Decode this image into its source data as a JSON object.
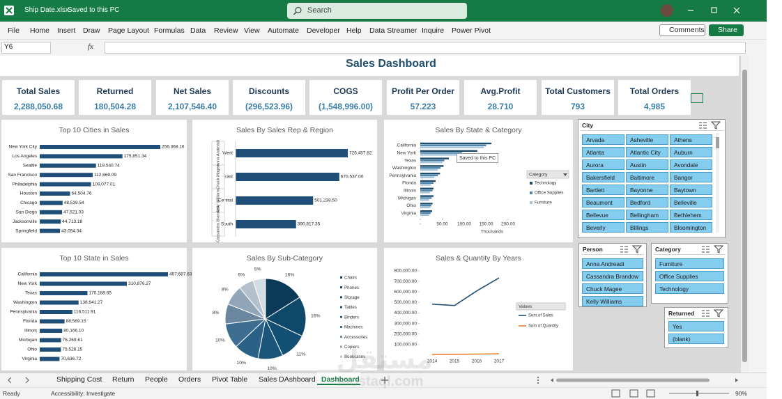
{
  "titlebar": {
    "file": "Ship Date.xlsx",
    "status": "Saved to this PC",
    "search": "Search"
  },
  "menu": [
    "File",
    "Home",
    "Insert",
    "Draw",
    "Page Layout",
    "Formulas",
    "Data",
    "Review",
    "View",
    "Automate",
    "Developer",
    "Help",
    "Data Streamer",
    "Inquire",
    "Power Pivot"
  ],
  "comments": "Comments",
  "share": "Share",
  "name_box": "Y6",
  "fx": "fx",
  "dashboard_title": "Sales Dashboard",
  "kpis": [
    {
      "label": "Total Sales",
      "value": "2,288,050.68"
    },
    {
      "label": "Returned",
      "value": "180,504.28"
    },
    {
      "label": "Net Sales",
      "value": "2,107,546.40"
    },
    {
      "label": "Discounts",
      "value": "(296,523.96)"
    },
    {
      "label": "COGS",
      "value": "(1,548,996.00)"
    },
    {
      "label": "Profit Per Order",
      "value": "57.223"
    },
    {
      "label": "Avg.Profit",
      "value": "28.710"
    },
    {
      "label": "Total Customers",
      "value": "793"
    },
    {
      "label": "Total Orders",
      "value": "4,985"
    }
  ],
  "chart_data": [
    {
      "type": "bar",
      "title": "Top 10 Cities in Sales",
      "color": "#1f4e79",
      "categories": [
        "New York City",
        "Los Angeles",
        "Seattle",
        "San Francisco",
        "Philadelphia",
        "Houston",
        "Chicago",
        "San Diego",
        "Jacksonville",
        "Springfield"
      ],
      "values": [
        256368.16,
        175851.34,
        119540.74,
        112669.09,
        109077.01,
        64504.76,
        48539.54,
        47521.03,
        44713.18,
        43054.34
      ],
      "value_labels": [
        "256,368.16",
        "175,851.34",
        "119,540.74",
        "112,669.09",
        "109,077.01",
        "64,504.76",
        "48,539.54",
        "47,521.03",
        "44,713.18",
        "43,054.34"
      ]
    },
    {
      "type": "bar",
      "title": "Sales By Sales Rep & Region",
      "color": "#1f4e79",
      "groups": [
        "Anna Andreadi",
        "Chuck Magee",
        "Kelly Williams",
        "Cassandra Brandow"
      ],
      "categories": [
        "West",
        "East",
        "Central",
        "South"
      ],
      "values": [
        725457.82,
        670537.0,
        501238.5,
        390817.35
      ],
      "value_labels": [
        "725,457.82",
        "670,537.00",
        "501,238.50",
        "390,817.35"
      ]
    },
    {
      "type": "bar",
      "title": "Sales By State & Category",
      "xlabel": "Thousands",
      "legend_title": "Category",
      "categories": [
        "California",
        "New York",
        "Texas",
        "Washington",
        "Pennsylvania",
        "Florida",
        "Illinois",
        "Michigan",
        "Ohio",
        "Virginia"
      ],
      "series": [
        {
          "name": "Technology",
          "color": "#1b4a6b",
          "values": [
            162,
            130,
            65,
            53,
            45,
            35,
            30,
            30,
            28,
            27
          ]
        },
        {
          "name": "Office Supplies",
          "color": "#4f86ad",
          "values": [
            150,
            95,
            55,
            46,
            40,
            30,
            28,
            26,
            25,
            24
          ]
        },
        {
          "name": "Furniture",
          "color": "#a6c3d9",
          "values": [
            145,
            86,
            50,
            40,
            32,
            24,
            22,
            20,
            23,
            20
          ]
        }
      ],
      "xlim": [
        0,
        200
      ],
      "xticks": [
        {
          "value": 0,
          "label": "-"
        },
        {
          "value": 50,
          "label": "50.00"
        },
        {
          "value": 100,
          "label": "100.00"
        },
        {
          "value": 150,
          "label": "150.00"
        },
        {
          "value": 200,
          "label": "200.00"
        }
      ]
    },
    {
      "type": "bar",
      "title": "Top 10  State in Sales",
      "color": "#1f4e79",
      "categories": [
        "California",
        "New York",
        "Texas",
        "Washington",
        "Pennsylvania",
        "Florida",
        "Illinois",
        "Michigan",
        "Ohio",
        "Virginia"
      ],
      "values": [
        457687.63,
        310876.27,
        170188.65,
        138641.27,
        116511.91,
        88569.15,
        80166.1,
        76269.61,
        75528.15,
        70636.72
      ],
      "value_labels": [
        "457,687.63",
        "310,876.27",
        "170,188.65",
        "138,641.27",
        "116,511.91",
        "88,569.15",
        "80,166.10",
        "76,269.61",
        "75,528.15",
        "70,636.72"
      ]
    },
    {
      "type": "pie",
      "title": "Sales By Sub-Category",
      "categories": [
        "Chairs",
        "Phones",
        "Storage",
        "Tables",
        "Binders",
        "Machines",
        "Accessories",
        "Copiers",
        "Bookcases",
        null
      ],
      "values": [
        16,
        16,
        11,
        10,
        10,
        10,
        8,
        8,
        6,
        5
      ],
      "value_labels": [
        "16%",
        "16%",
        "11%",
        "10%",
        "10%",
        "10%",
        "8%",
        "8%",
        "6%",
        "5%"
      ],
      "colors": [
        "#0b3a58",
        "#0f4868",
        "#134f73",
        "#1b557a",
        "#2b6187",
        "#3d6e92",
        "#6a879f",
        "#91a6b8",
        "#b4c1cd",
        "#d3dbe3"
      ]
    },
    {
      "type": "line",
      "title": "Sales & Quantity By Years",
      "legend_title": "Values",
      "x": [
        2014,
        2015,
        2016,
        2017
      ],
      "xticks": [
        2014,
        2015,
        2016,
        2017
      ],
      "series": [
        {
          "name": "Sum of Sales",
          "color": "#1f4e79",
          "values": [
            484247,
            470533,
            609206,
            733215
          ]
        },
        {
          "name": "Sum of Quantity",
          "color": "#ed7d31",
          "values": [
            7581,
            7979,
            9837,
            12476
          ]
        }
      ],
      "ylim": [
        0,
        800000
      ],
      "yticks": [
        {
          "value": 100000,
          "label": "100,000.00"
        },
        {
          "value": 200000,
          "label": "200,000.00"
        },
        {
          "value": 300000,
          "label": "300,000.00"
        },
        {
          "value": 400000,
          "label": "400,000.00"
        },
        {
          "value": 500000,
          "label": "500,000.00"
        },
        {
          "value": 600000,
          "label": "600,000.00"
        },
        {
          "value": 700000,
          "label": "700,000.00"
        },
        {
          "value": 800000,
          "label": "800,000.00"
        }
      ]
    }
  ],
  "tooltip": "Saved to this PC",
  "slicers": [
    {
      "title": "City",
      "items": [
        "Arvada",
        "Asheville",
        "Athens",
        "Atlanta",
        "Atlantic City",
        "Auburn",
        "Aurora",
        "Austin",
        "Avondale",
        "Bakersfield",
        "Baltimore",
        "Bangor",
        "Bartlett",
        "Bayonne",
        "Baytown",
        "Beaumont",
        "Bedford",
        "Belleville",
        "Bellevue",
        "Bellingham",
        "Bethlehem",
        "Beverly",
        "Billings",
        "Bloomington"
      ]
    },
    {
      "title": "Person",
      "items": [
        "Anna Andreadi",
        "Cassandra Brandow",
        "Chuck Magee",
        "Kelly Williams"
      ]
    },
    {
      "title": "Category",
      "items": [
        "Furniture",
        "Office Supplies",
        "Technology"
      ]
    },
    {
      "title": "Returned",
      "items": [
        "Yes",
        "(blank)"
      ]
    }
  ],
  "sheet_tabs": [
    "Shipping Cost",
    "Return",
    "People",
    "Orders",
    "Pivot Table",
    "Sales DAshboard",
    "Dashboard"
  ],
  "active_tab": 6,
  "status": {
    "ready": "Ready",
    "accessibility": "Accessibility: Investigate",
    "zoom": "90%"
  },
  "watermark": {
    "arabic": "مستقل",
    "latin": "mostaql.com"
  }
}
